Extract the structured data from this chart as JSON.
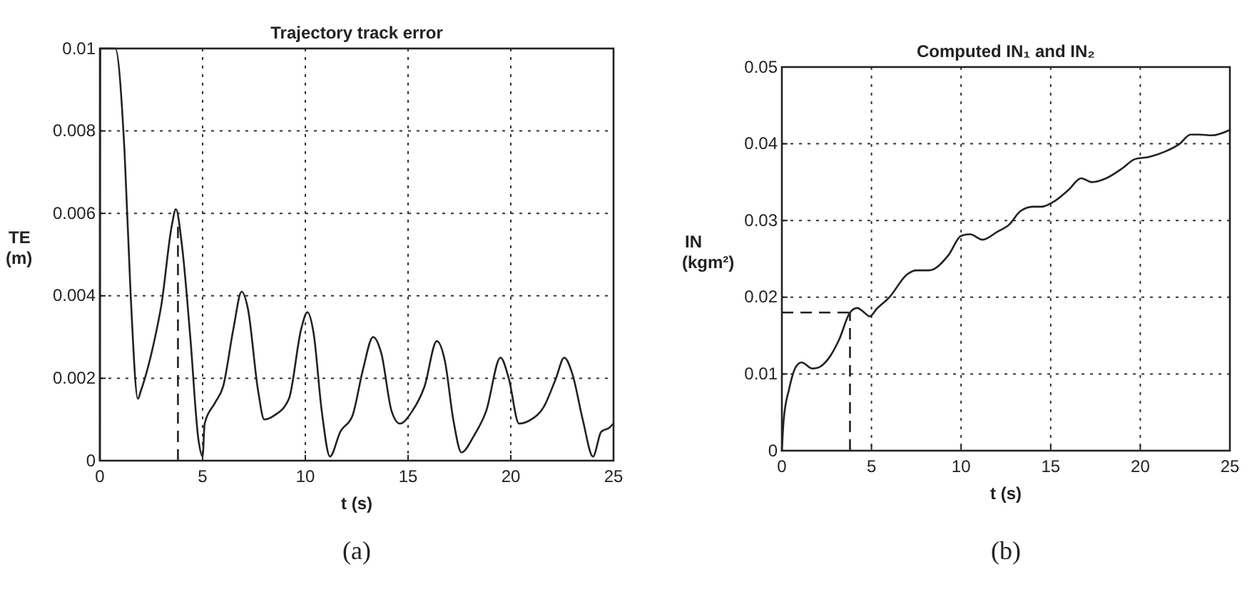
{
  "chart_data": [
    {
      "type": "line",
      "title": "Trajectory track error",
      "xlabel": "t (s)",
      "ylabel": "TE (m)",
      "xlim": [
        0,
        25
      ],
      "ylim": [
        0,
        0.01
      ],
      "xticks": [
        0,
        5,
        10,
        15,
        20,
        25
      ],
      "yticks": [
        0,
        0.002,
        0.004,
        0.006,
        0.008,
        0.01
      ],
      "grid": true,
      "line_style": "solid",
      "annotations": [
        "(a)"
      ],
      "ref_lines": [
        {
          "axis": "x",
          "value": 3.8,
          "line_style": "dashed"
        }
      ],
      "series": [
        {
          "color": "#222222",
          "x": [
            0,
            0.02,
            0.75,
            1.2,
            1.5,
            1.85,
            2.0,
            2.6,
            3.0,
            3.5,
            3.7,
            4.0,
            4.4,
            4.8,
            5.0,
            5.1,
            5.6,
            6.0,
            6.5,
            6.9,
            7.2,
            7.7,
            8.0,
            8.5,
            9.2,
            9.8,
            10.1,
            10.4,
            10.8,
            11.2,
            11.7,
            12.3,
            12.8,
            13.3,
            13.7,
            14.2,
            14.6,
            15.2,
            15.8,
            16.4,
            16.8,
            17.2,
            17.6,
            18.2,
            18.8,
            19.5,
            19.9,
            20.4,
            21,
            21.6,
            22.2,
            22.6,
            23.0,
            23.5,
            24.0,
            24.4,
            24.8,
            25
          ],
          "values": [
            0,
            0.01,
            0.01,
            0.0075,
            0.004,
            0.0015,
            0.0017,
            0.0028,
            0.0038,
            0.0057,
            0.0061,
            0.0052,
            0.003,
            0.0005,
            0.0001,
            0.0009,
            0.0014,
            0.0018,
            0.0032,
            0.0041,
            0.0037,
            0.0017,
            0.001,
            0.0011,
            0.0015,
            0.0032,
            0.0036,
            0.0031,
            0.0012,
            0.0001,
            0.0007,
            0.0011,
            0.0022,
            0.003,
            0.0026,
            0.0012,
            0.0009,
            0.0012,
            0.0018,
            0.0029,
            0.0024,
            0.001,
            0.0002,
            0.0006,
            0.0012,
            0.0025,
            0.002,
            0.0009,
            0.001,
            0.0013,
            0.002,
            0.0025,
            0.0021,
            0.001,
            0.0001,
            0.0007,
            0.0008,
            0.0009
          ]
        }
      ]
    },
    {
      "type": "line",
      "title": "Computed IN₁ and IN₂",
      "xlabel": "t (s)",
      "ylabel": "IN (kgm²)",
      "xlim": [
        0,
        25
      ],
      "ylim": [
        0,
        0.05
      ],
      "xticks": [
        0,
        5,
        10,
        15,
        20,
        25
      ],
      "yticks": [
        0,
        0.01,
        0.02,
        0.03,
        0.04,
        0.05
      ],
      "grid": true,
      "line_style": "solid",
      "annotations": [
        "(b)"
      ],
      "ref_lines": [
        {
          "axis": "x",
          "value": 3.8,
          "line_style": "dashed"
        },
        {
          "axis": "y",
          "value": 0.018,
          "line_style": "dashed"
        }
      ],
      "series": [
        {
          "color": "#222222",
          "x": [
            0,
            0.1,
            0.4,
            0.8,
            1.1,
            1.7,
            2.0,
            2.6,
            3.2,
            3.8,
            4.2,
            4.6,
            4.9,
            5.3,
            6.0,
            7.0,
            7.5,
            8.2,
            9.3,
            10,
            10.5,
            11.2,
            12,
            12.7,
            13.3,
            14,
            14.5,
            15.2,
            16,
            16.7,
            17.3,
            18.1,
            19,
            19.7,
            20.5,
            21.4,
            22.2,
            22.8,
            23.3,
            24,
            25
          ],
          "values": [
            0,
            0.004,
            0.008,
            0.011,
            0.0115,
            0.0107,
            0.0108,
            0.012,
            0.0145,
            0.018,
            0.0186,
            0.018,
            0.0175,
            0.0185,
            0.02,
            0.023,
            0.0235,
            0.0235,
            0.0255,
            0.028,
            0.0282,
            0.0275,
            0.0285,
            0.0295,
            0.0312,
            0.0318,
            0.0318,
            0.0325,
            0.034,
            0.0355,
            0.035,
            0.0355,
            0.0368,
            0.038,
            0.0383,
            0.039,
            0.04,
            0.0412,
            0.0412,
            0.0411,
            0.0418
          ]
        }
      ]
    }
  ]
}
